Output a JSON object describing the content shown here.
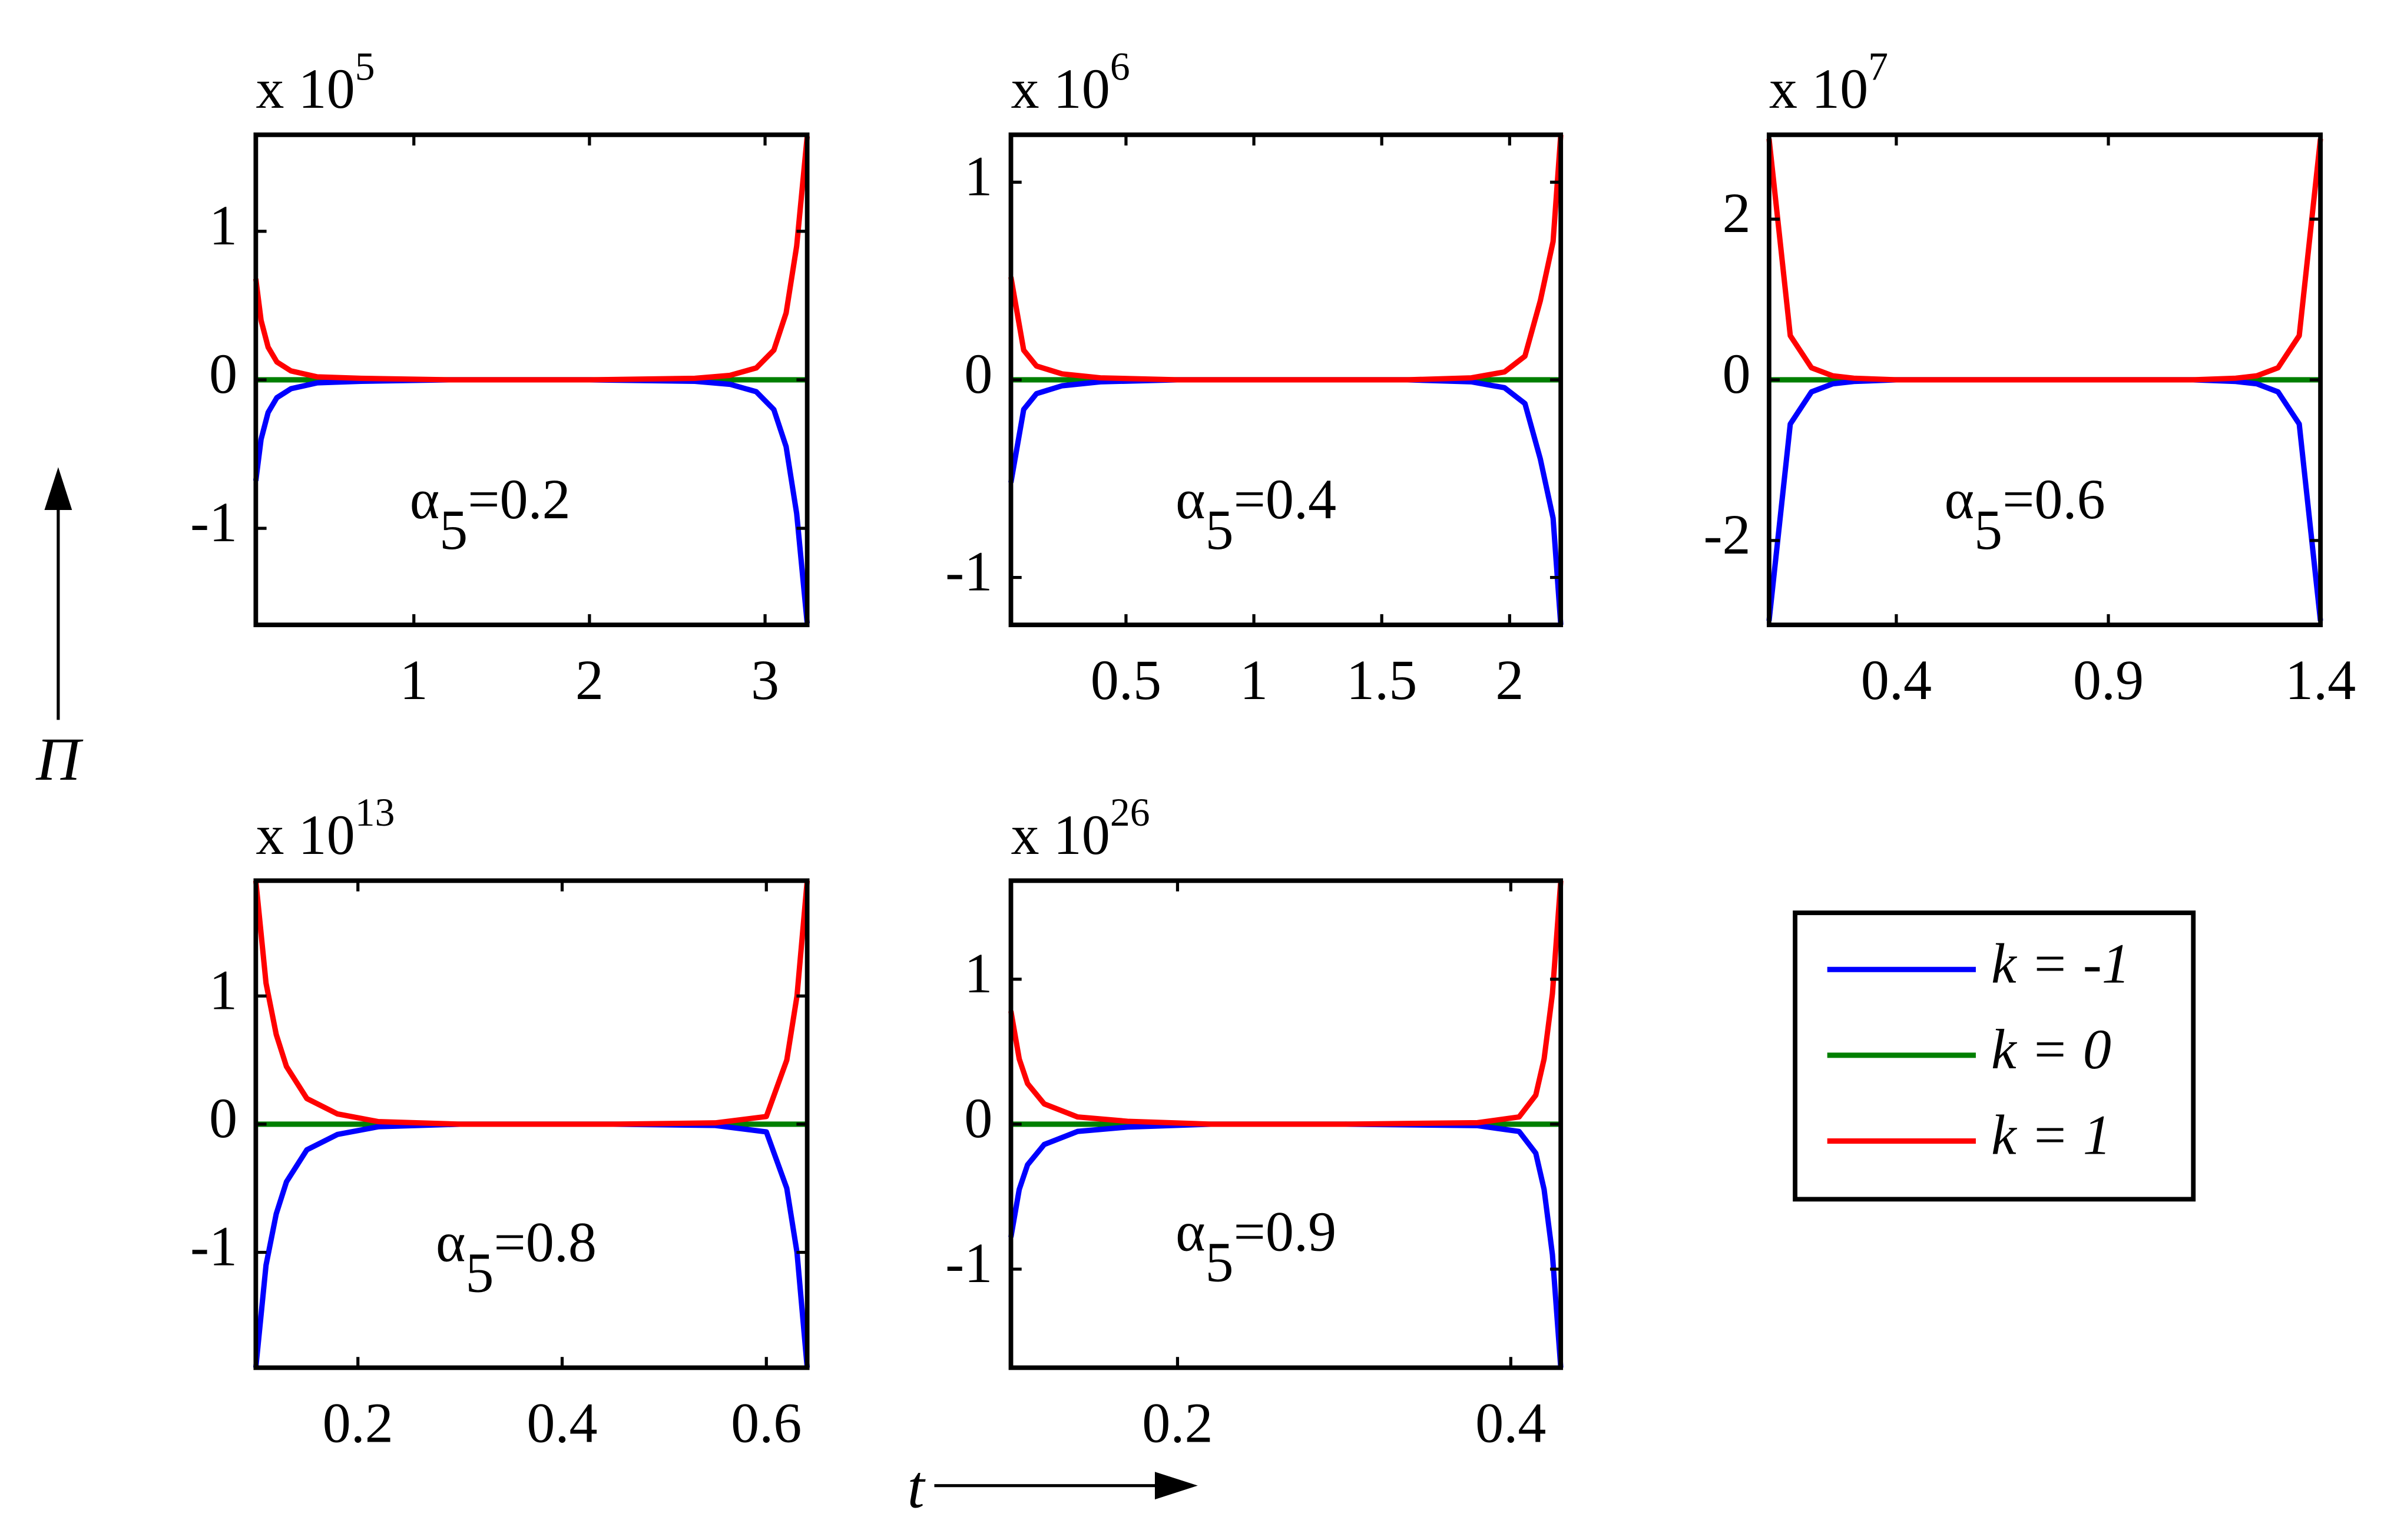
{
  "xlabel": "t",
  "ylabel": "Π",
  "chart_data": [
    {
      "type": "line",
      "scale_text": "x 10",
      "scale_exponent": "5",
      "annotation": {
        "symbol": "α",
        "subscript": "5",
        "text": "=0.2"
      },
      "xlim": [
        0.1,
        3.24
      ],
      "ylim": [
        -1.65,
        1.65
      ],
      "xticks": [
        1,
        2,
        3
      ],
      "yticks": [
        -1,
        0,
        1
      ],
      "x": [
        0.1,
        0.13,
        0.17,
        0.22,
        0.3,
        0.45,
        0.7,
        1.2,
        2.0,
        2.6,
        2.8,
        2.95,
        3.05,
        3.12,
        3.18,
        3.24
      ],
      "series": [
        {
          "name": "k = -1",
          "color": "#0000ff",
          "values": [
            -0.68,
            -0.4,
            -0.22,
            -0.12,
            -0.06,
            -0.02,
            -0.01,
            0,
            0,
            -0.01,
            -0.03,
            -0.08,
            -0.2,
            -0.45,
            -0.9,
            -1.64
          ]
        },
        {
          "name": "k = 0",
          "color": "#007f00",
          "values": [
            0,
            0,
            0,
            0,
            0,
            0,
            0,
            0,
            0,
            0,
            0,
            0,
            0,
            0,
            0,
            0
          ]
        },
        {
          "name": "k = 1",
          "color": "#ff0000",
          "values": [
            0.68,
            0.4,
            0.22,
            0.12,
            0.06,
            0.02,
            0.01,
            0,
            0,
            0.01,
            0.03,
            0.08,
            0.2,
            0.45,
            0.9,
            1.64
          ]
        }
      ]
    },
    {
      "type": "line",
      "scale_text": "x 10",
      "scale_exponent": "6",
      "annotation": {
        "symbol": "α",
        "subscript": "5",
        "text": "=0.4"
      },
      "xlim": [
        0.05,
        2.2
      ],
      "ylim": [
        -1.24,
        1.24
      ],
      "xticks": [
        0.5,
        1,
        1.5,
        2
      ],
      "yticks": [
        -1,
        0,
        1
      ],
      "x": [
        0.05,
        0.1,
        0.15,
        0.25,
        0.4,
        0.7,
        1.2,
        1.6,
        1.85,
        1.98,
        2.06,
        2.12,
        2.17,
        2.2
      ],
      "series": [
        {
          "name": "k = -1",
          "color": "#0000ff",
          "values": [
            -0.52,
            -0.15,
            -0.07,
            -0.03,
            -0.01,
            0,
            0,
            0,
            -0.01,
            -0.04,
            -0.12,
            -0.4,
            -0.7,
            -1.24
          ]
        },
        {
          "name": "k = 0",
          "color": "#007f00",
          "values": [
            0,
            0,
            0,
            0,
            0,
            0,
            0,
            0,
            0,
            0,
            0,
            0,
            0,
            0
          ]
        },
        {
          "name": "k = 1",
          "color": "#ff0000",
          "values": [
            0.52,
            0.15,
            0.07,
            0.03,
            0.01,
            0,
            0,
            0,
            0.01,
            0.04,
            0.12,
            0.4,
            0.7,
            1.24
          ]
        }
      ]
    },
    {
      "type": "line",
      "scale_text": "x 10",
      "scale_exponent": "7",
      "annotation": {
        "symbol": "α",
        "subscript": "5",
        "text": "=0.6"
      },
      "xlim": [
        0.1,
        1.4
      ],
      "ylim": [
        -3.05,
        3.05
      ],
      "xticks": [
        0.4,
        0.9,
        1.4
      ],
      "yticks": [
        -2,
        0,
        2
      ],
      "x": [
        0.1,
        0.15,
        0.2,
        0.25,
        0.3,
        0.4,
        0.6,
        0.9,
        1.1,
        1.2,
        1.25,
        1.3,
        1.35,
        1.4
      ],
      "series": [
        {
          "name": "k = -1",
          "color": "#0000ff",
          "values": [
            -3.0,
            -0.55,
            -0.15,
            -0.05,
            -0.02,
            0,
            0,
            0,
            0,
            -0.02,
            -0.05,
            -0.15,
            -0.55,
            -3.0
          ]
        },
        {
          "name": "k = 0",
          "color": "#007f00",
          "values": [
            0,
            0,
            0,
            0,
            0,
            0,
            0,
            0,
            0,
            0,
            0,
            0,
            0,
            0
          ]
        },
        {
          "name": "k = 1",
          "color": "#ff0000",
          "values": [
            3.0,
            0.55,
            0.15,
            0.05,
            0.02,
            0,
            0,
            0,
            0,
            0.02,
            0.05,
            0.15,
            0.55,
            3.0
          ]
        }
      ]
    },
    {
      "type": "line",
      "scale_text": "x 10",
      "scale_exponent": "13",
      "annotation": {
        "symbol": "α",
        "subscript": "5",
        "text": "=0.8"
      },
      "xlim": [
        0.1,
        0.64
      ],
      "ylim": [
        -1.9,
        1.9
      ],
      "xticks": [
        0.2,
        0.4,
        0.6
      ],
      "yticks": [
        -1,
        0,
        1
      ],
      "x": [
        0.1,
        0.11,
        0.12,
        0.13,
        0.15,
        0.18,
        0.22,
        0.3,
        0.45,
        0.55,
        0.6,
        0.62,
        0.63,
        0.64
      ],
      "series": [
        {
          "name": "k = -1",
          "color": "#0000ff",
          "values": [
            -1.9,
            -1.1,
            -0.7,
            -0.45,
            -0.2,
            -0.08,
            -0.02,
            0,
            0,
            -0.01,
            -0.06,
            -0.5,
            -1.0,
            -1.9
          ]
        },
        {
          "name": "k = 0",
          "color": "#007f00",
          "values": [
            0,
            0,
            0,
            0,
            0,
            0,
            0,
            0,
            0,
            0,
            0,
            0,
            0,
            0
          ]
        },
        {
          "name": "k = 1",
          "color": "#ff0000",
          "values": [
            1.9,
            1.1,
            0.7,
            0.45,
            0.2,
            0.08,
            0.02,
            0,
            0,
            0.01,
            0.06,
            0.5,
            1.0,
            1.9
          ]
        }
      ]
    },
    {
      "type": "line",
      "scale_text": "x 10",
      "scale_exponent": "26",
      "annotation": {
        "symbol": "α",
        "subscript": "5",
        "text": "=0.9"
      },
      "xlim": [
        0.1,
        0.43
      ],
      "ylim": [
        -1.68,
        1.68
      ],
      "xticks": [
        0.2,
        0.4
      ],
      "yticks": [
        -1,
        0,
        1
      ],
      "x": [
        0.1,
        0.105,
        0.11,
        0.12,
        0.14,
        0.17,
        0.22,
        0.3,
        0.38,
        0.405,
        0.415,
        0.42,
        0.425,
        0.43
      ],
      "series": [
        {
          "name": "k = -1",
          "color": "#0000ff",
          "values": [
            -0.78,
            -0.45,
            -0.28,
            -0.14,
            -0.05,
            -0.02,
            0,
            0,
            -0.01,
            -0.05,
            -0.2,
            -0.45,
            -0.9,
            -1.68
          ]
        },
        {
          "name": "k = 0",
          "color": "#007f00",
          "values": [
            0,
            0,
            0,
            0,
            0,
            0,
            0,
            0,
            0,
            0,
            0,
            0,
            0,
            0
          ]
        },
        {
          "name": "k = 1",
          "color": "#ff0000",
          "values": [
            0.78,
            0.45,
            0.28,
            0.14,
            0.05,
            0.02,
            0,
            0,
            0.01,
            0.05,
            0.2,
            0.45,
            0.9,
            1.68
          ]
        }
      ]
    }
  ]
}
